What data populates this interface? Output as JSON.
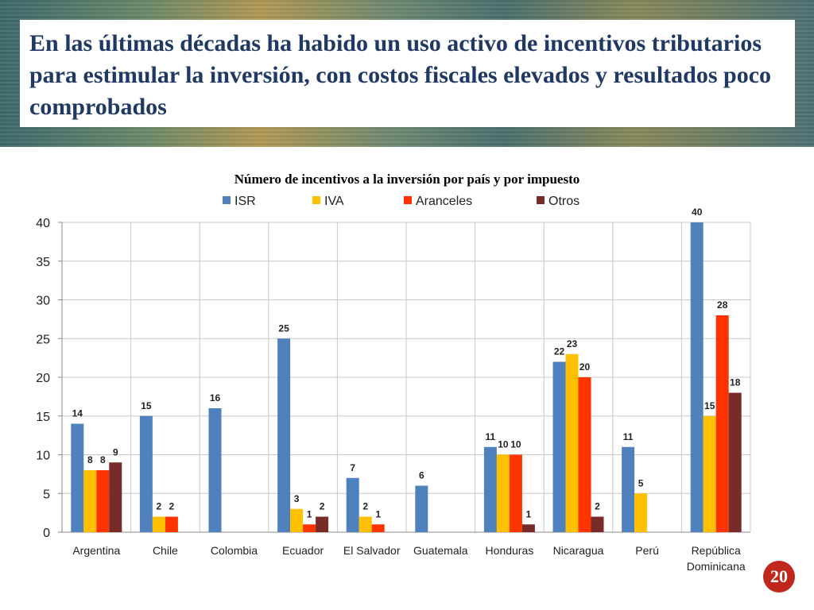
{
  "slide": {
    "title": "En las últimas décadas ha habido un uso activo de incentivos tributarios para estimular la inversión, con costos fiscales elevados y resultados poco comprobados",
    "page_number": "20"
  },
  "colors": {
    "ISR": "#4f81bd",
    "IVA": "#ffc000",
    "Aranceles": "#ff3300",
    "Otros": "#772c2a"
  },
  "chart_data": {
    "type": "bar",
    "title": "Número de incentivos a la inversión por país y por impuesto",
    "categories": [
      "Argentina",
      "Chile",
      "Colombia",
      "Ecuador",
      "El Salvador",
      "Guatemala",
      "Honduras",
      "Nicaragua",
      "Perú",
      "República Dominicana"
    ],
    "series": [
      {
        "name": "ISR",
        "values": [
          14,
          15,
          16,
          25,
          7,
          6,
          11,
          22,
          11,
          40
        ]
      },
      {
        "name": "IVA",
        "values": [
          8,
          2,
          null,
          3,
          2,
          null,
          10,
          23,
          5,
          15
        ]
      },
      {
        "name": "Aranceles",
        "values": [
          8,
          2,
          null,
          1,
          1,
          null,
          10,
          20,
          null,
          28
        ]
      },
      {
        "name": "Otros",
        "values": [
          9,
          null,
          null,
          2,
          null,
          null,
          1,
          2,
          null,
          18
        ]
      }
    ],
    "yticks": [
      "0",
      "5",
      "10",
      "15",
      "20",
      "25",
      "30",
      "35",
      "40"
    ],
    "ylim": [
      0,
      40
    ],
    "xlabel": "",
    "ylabel": "",
    "legend_position": "top",
    "grid": true
  }
}
